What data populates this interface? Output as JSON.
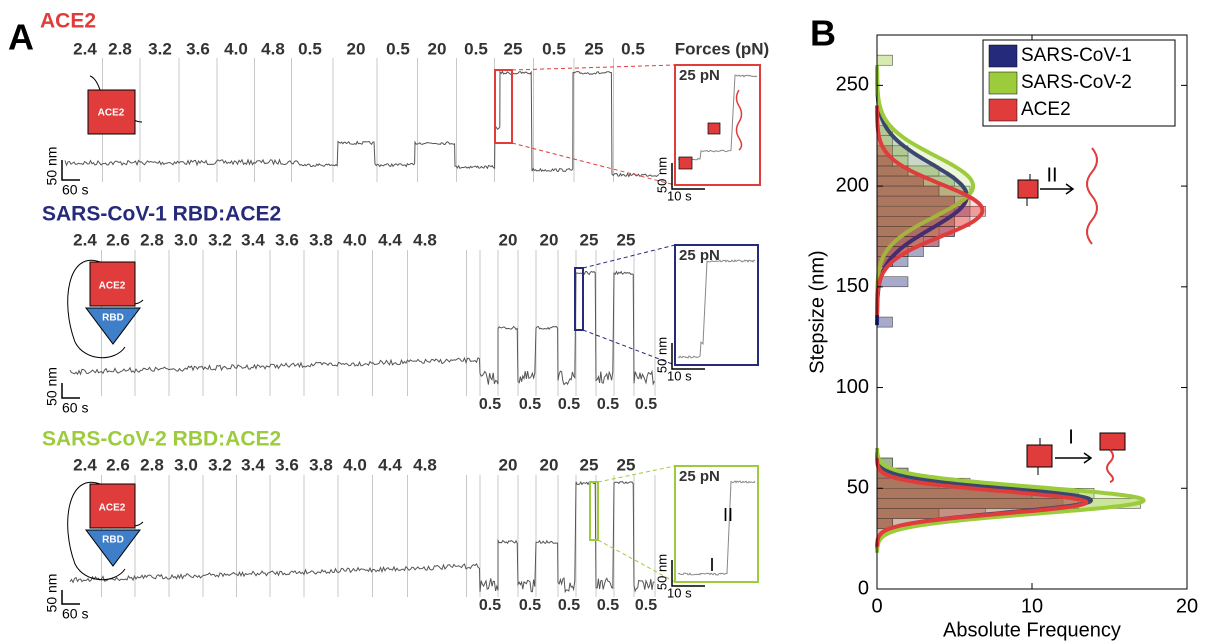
{
  "panel_a": {
    "label": "A",
    "rows": [
      {
        "title": "ACE2",
        "protein_labels": [
          "ACE2"
        ],
        "forces": [
          "2.4",
          "2.8",
          "3.2",
          "3.6",
          "4.0",
          "4.8",
          "0.5",
          "20",
          "0.5",
          "20",
          "0.5",
          "25",
          "0.5",
          "25",
          "0.5"
        ],
        "forces_label": "Forces (pN)",
        "scale_y": "50 nm",
        "scale_x": "60 s",
        "inset": {
          "force": "25 pN",
          "scale_y": "50 nm",
          "scale_x": "10 s"
        }
      },
      {
        "title": "SARS-CoV-1 RBD:ACE2",
        "protein_labels": [
          "ACE2",
          "RBD"
        ],
        "forces": [
          "2.4",
          "2.6",
          "2.8",
          "3.0",
          "3.2",
          "3.4",
          "3.6",
          "3.8",
          "4.0",
          "4.4",
          "4.8",
          "20",
          "20",
          "25",
          "25"
        ],
        "low_forces": [
          "0.5",
          "0.5",
          "0.5",
          "0.5",
          "0.5"
        ],
        "scale_y": "50 nm",
        "scale_x": "60 s",
        "inset": {
          "force": "25 pN",
          "scale_y": "50 nm",
          "scale_x": "10 s"
        }
      },
      {
        "title": "SARS-CoV-2 RBD:ACE2",
        "protein_labels": [
          "ACE2",
          "RBD"
        ],
        "forces": [
          "2.4",
          "2.6",
          "2.8",
          "3.0",
          "3.2",
          "3.4",
          "3.6",
          "3.8",
          "4.0",
          "4.4",
          "4.8",
          "20",
          "20",
          "25",
          "25"
        ],
        "low_forces": [
          "0.5",
          "0.5",
          "0.5",
          "0.5",
          "0.5"
        ],
        "scale_y": "50 nm",
        "scale_x": "60 s",
        "inset": {
          "force": "25 pN",
          "scale_y": "50 nm",
          "scale_x": "10 s",
          "steps": [
            "I",
            "II"
          ]
        }
      }
    ]
  },
  "chart_data": {
    "type": "histogram",
    "panel_label": "B",
    "orientation": "horizontal",
    "xlabel": "Absolute Frequency",
    "ylabel": "Stepsize (nm)",
    "bins": [
      25,
      30,
      35,
      40,
      45,
      50,
      55,
      60,
      65,
      70,
      75,
      80,
      85,
      90,
      95,
      100,
      105,
      110,
      115,
      120,
      125,
      130,
      135,
      140,
      145,
      150,
      155,
      160,
      165,
      170,
      175,
      180,
      185,
      190,
      195,
      200,
      205,
      210,
      215,
      220,
      225,
      230,
      235,
      240,
      245,
      250,
      255,
      260,
      265
    ],
    "series": [
      {
        "name": "SARS-CoV-1",
        "color": "#262a7a",
        "values": [
          0,
          1,
          4,
          12,
          13,
          5,
          2,
          1,
          0,
          0,
          0,
          0,
          0,
          0,
          0,
          0,
          0,
          0,
          0,
          0,
          0,
          1,
          0,
          0,
          0,
          2,
          0,
          2,
          3,
          4,
          5,
          5,
          6,
          5,
          4,
          3,
          2,
          1,
          0,
          0,
          0,
          0,
          0,
          0,
          0,
          0,
          0,
          0
        ],
        "fits": [
          {
            "mean": 44,
            "sd": 6,
            "peak": 13.8
          },
          {
            "mean": 195,
            "sd": 16,
            "peak": 5.8
          }
        ]
      },
      {
        "name": "SARS-CoV-2",
        "color": "#9ccc3c",
        "values": [
          0,
          1,
          4,
          17,
          14,
          6,
          2,
          1,
          0,
          0,
          0,
          0,
          0,
          0,
          0,
          0,
          0,
          0,
          0,
          0,
          0,
          0,
          0,
          0,
          0,
          0,
          0,
          1,
          2,
          3,
          4,
          5,
          5,
          6,
          6,
          5,
          4,
          2,
          2,
          1,
          1,
          0,
          0,
          0,
          0,
          0,
          0,
          1
        ],
        "fits": [
          {
            "mean": 44,
            "sd": 6.5,
            "peak": 17.2
          },
          {
            "mean": 200,
            "sd": 15,
            "peak": 6.2
          }
        ]
      },
      {
        "name": "ACE2",
        "color": "#e03c3c",
        "values": [
          0,
          1,
          7,
          13,
          10,
          4,
          1,
          0,
          0,
          0,
          0,
          0,
          0,
          0,
          0,
          0,
          0,
          0,
          0,
          0,
          0,
          0,
          0,
          0,
          0,
          0,
          0,
          1,
          2,
          4,
          5,
          6,
          7,
          5,
          4,
          3,
          2,
          1,
          1,
          0,
          0,
          0,
          0,
          0,
          0,
          0,
          0,
          0
        ],
        "fits": [
          {
            "mean": 43,
            "sd": 5.5,
            "peak": 13.5
          },
          {
            "mean": 188,
            "sd": 13,
            "peak": 6.8
          }
        ]
      }
    ],
    "xlim": [
      0,
      20
    ],
    "ylim": [
      0,
      275
    ],
    "xticks": [
      0,
      10,
      20
    ],
    "yticks": [
      0,
      50,
      100,
      150,
      200,
      250
    ],
    "legend": "upper right",
    "annotations": [
      "II",
      "I"
    ]
  }
}
